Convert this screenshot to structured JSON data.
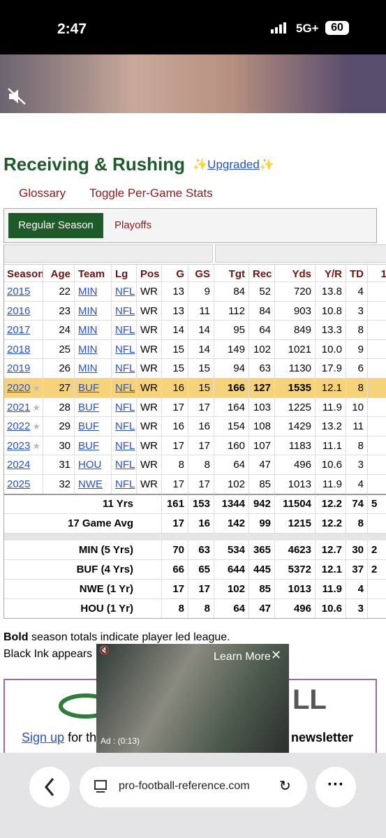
{
  "status_bar": {
    "time": "2:47",
    "network": "5G+",
    "battery": "60"
  },
  "section": {
    "title": "Receiving & Rushing",
    "sparkle": "✨",
    "upgraded": "Upgraded"
  },
  "links": [
    "Glossary",
    "Toggle Per-Game Stats"
  ],
  "tabs": [
    "Regular Season",
    "Playoffs"
  ],
  "table": {
    "columns": [
      "Season",
      "Age",
      "Team",
      "Lg",
      "Pos",
      "G",
      "GS",
      "Tgt",
      "Rec",
      "Yds",
      "Y/R",
      "TD",
      "1"
    ],
    "rows": [
      {
        "cells": [
          "2015",
          "22",
          "MIN",
          "NFL",
          "WR",
          "13",
          "9",
          "84",
          "52",
          "720",
          "13.8",
          "4"
        ]
      },
      {
        "cells": [
          "2016",
          "23",
          "MIN",
          "NFL",
          "WR",
          "13",
          "11",
          "112",
          "84",
          "903",
          "10.8",
          "3"
        ]
      },
      {
        "cells": [
          "2017",
          "24",
          "MIN",
          "NFL",
          "WR",
          "14",
          "14",
          "95",
          "64",
          "849",
          "13.3",
          "8"
        ]
      },
      {
        "cells": [
          "2018",
          "25",
          "MIN",
          "NFL",
          "WR",
          "15",
          "14",
          "149",
          "102",
          "1021",
          "10.0",
          "9"
        ]
      },
      {
        "cells": [
          "2019",
          "26",
          "MIN",
          "NFL",
          "WR",
          "15",
          "15",
          "94",
          "63",
          "1130",
          "17.9",
          "6"
        ]
      },
      {
        "cells": [
          "2020",
          "27",
          "BUF",
          "NFL",
          "WR",
          "16",
          "15",
          "166",
          "127",
          "1535",
          "12.1",
          "8"
        ],
        "highlight": true,
        "star": true
      },
      {
        "cells": [
          "2021",
          "28",
          "BUF",
          "NFL",
          "WR",
          "17",
          "17",
          "164",
          "103",
          "1225",
          "11.9",
          "10"
        ],
        "star": true
      },
      {
        "cells": [
          "2022",
          "29",
          "BUF",
          "NFL",
          "WR",
          "16",
          "16",
          "154",
          "108",
          "1429",
          "13.2",
          "11"
        ],
        "star": true
      },
      {
        "cells": [
          "2023",
          "30",
          "BUF",
          "NFL",
          "WR",
          "17",
          "17",
          "160",
          "107",
          "1183",
          "11.1",
          "8"
        ],
        "star": true
      },
      {
        "cells": [
          "2024",
          "31",
          "HOU",
          "NFL",
          "WR",
          "8",
          "8",
          "64",
          "47",
          "496",
          "10.6",
          "3"
        ]
      },
      {
        "cells": [
          "2025",
          "32",
          "NWE",
          "NFL",
          "WR",
          "17",
          "17",
          "102",
          "85",
          "1013",
          "11.9",
          "4"
        ]
      }
    ],
    "summary": [
      {
        "label": "11 Yrs",
        "cells": [
          "161",
          "153",
          "1344",
          "942",
          "11504",
          "12.2",
          "74",
          "5"
        ]
      },
      {
        "label": "17 Game Avg",
        "cells": [
          "17",
          "16",
          "142",
          "99",
          "1215",
          "12.2",
          "8"
        ]
      },
      {
        "label": "MIN (5 Yrs)",
        "cells": [
          "70",
          "63",
          "534",
          "365",
          "4623",
          "12.7",
          "30",
          "2"
        ]
      },
      {
        "label": "BUF (4 Yrs)",
        "cells": [
          "66",
          "65",
          "644",
          "445",
          "5372",
          "12.1",
          "37",
          "2"
        ]
      },
      {
        "label": "NWE (1 Yr)",
        "cells": [
          "17",
          "17",
          "102",
          "85",
          "1013",
          "11.9",
          "4"
        ]
      },
      {
        "label": "HOU (1 Yr)",
        "cells": [
          "8",
          "8",
          "64",
          "47",
          "496",
          "10.6",
          "3"
        ]
      }
    ]
  },
  "notes": {
    "bold": "Bold",
    "text": " season totals indicate player led league.",
    "line2": "Black Ink appears"
  },
  "newsletter": {
    "logo_text": "LL",
    "signup": "Sign up",
    "text": " for the",
    "newsletter": "newsletter"
  },
  "ad": {
    "cta": "Learn More",
    "timer": "Ad : (0:13)"
  },
  "browser": {
    "url": "pro-football-reference.com"
  }
}
